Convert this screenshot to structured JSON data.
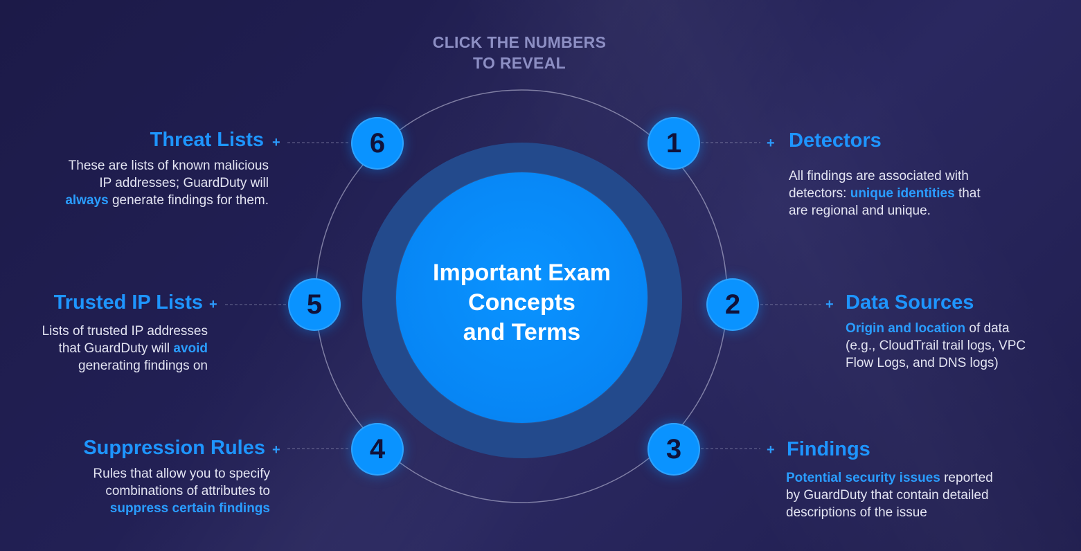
{
  "header": {
    "line1": "CLICK THE NUMBERS",
    "line2": "TO REVEAL"
  },
  "center": {
    "line1": "Important Exam",
    "line2": "Concepts",
    "line3": "and Terms"
  },
  "plus_symbol": "+",
  "colors": {
    "accent": "#0a93ff",
    "highlight": "#2a9dff",
    "background": "#1f1d4e",
    "ring": "#234a8c"
  },
  "concepts": [
    {
      "number": "1",
      "title": "Detectors",
      "desc": [
        [
          {
            "t": "All findings are associated with"
          }
        ],
        [
          {
            "t": "detectors: "
          },
          {
            "t": "unique identities",
            "h": true
          },
          {
            "t": " that"
          }
        ],
        [
          {
            "t": "are regional and unique."
          }
        ]
      ]
    },
    {
      "number": "2",
      "title": "Data Sources",
      "desc": [
        [
          {
            "t": "Origin and location",
            "h": true
          },
          {
            "t": " of data"
          }
        ],
        [
          {
            "t": "(e.g., CloudTrail trail logs, VPC"
          }
        ],
        [
          {
            "t": "Flow Logs, and DNS logs)"
          }
        ]
      ]
    },
    {
      "number": "3",
      "title": "Findings",
      "desc": [
        [
          {
            "t": "Potential security issues",
            "h": true
          },
          {
            "t": " reported"
          }
        ],
        [
          {
            "t": "by GuardDuty that contain detailed"
          }
        ],
        [
          {
            "t": "descriptions of the issue"
          }
        ]
      ]
    },
    {
      "number": "4",
      "title": "Suppression Rules",
      "desc": [
        [
          {
            "t": "Rules that allow you to specify"
          }
        ],
        [
          {
            "t": "combinations of attributes to"
          }
        ],
        [
          {
            "t": "suppress certain findings",
            "h": true
          }
        ]
      ]
    },
    {
      "number": "5",
      "title": "Trusted IP Lists",
      "desc": [
        [
          {
            "t": "Lists of trusted IP addresses"
          }
        ],
        [
          {
            "t": "that GuardDuty will "
          },
          {
            "t": "avoid",
            "h": true
          }
        ],
        [
          {
            "t": "generating findings on"
          }
        ]
      ]
    },
    {
      "number": "6",
      "title": "Threat Lists",
      "desc": [
        [
          {
            "t": "These are lists of known malicious"
          }
        ],
        [
          {
            "t": "IP addresses; GuardDuty will"
          }
        ],
        [
          {
            "t": "always",
            "h": true
          },
          {
            "t": " generate findings for them."
          }
        ]
      ]
    }
  ]
}
